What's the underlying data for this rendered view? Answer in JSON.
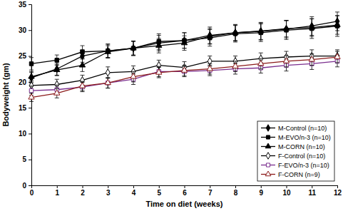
{
  "chart_data": {
    "type": "line",
    "x_label": "Time on diet (weeks)",
    "y_label": "Bodyweight (gm)",
    "x": [
      0,
      1,
      2,
      3,
      4,
      5,
      6,
      7,
      8,
      9,
      10,
      11,
      12
    ],
    "xlim": [
      0,
      12
    ],
    "xticks": [
      0,
      1,
      2,
      3,
      4,
      5,
      6,
      7,
      8,
      9,
      10,
      11,
      12
    ],
    "ylim": [
      0,
      35
    ],
    "yticks": [
      0,
      5,
      10,
      15,
      20,
      25,
      30,
      35
    ],
    "legend": "lower right",
    "series": [
      {
        "name": "M-Control (n=10)",
        "color": "#000000",
        "marker": "diamond",
        "values": [
          20.8,
          22.5,
          25.0,
          26.0,
          26.5,
          27.5,
          28.0,
          29.0,
          29.5,
          29.8,
          30.2,
          30.8,
          31.7
        ],
        "errors": [
          1.0,
          1.2,
          1.2,
          1.3,
          1.4,
          1.5,
          1.5,
          1.6,
          1.6,
          1.7,
          1.7,
          1.8,
          1.8
        ]
      },
      {
        "name": "M-EVO/n-3 (n=10)",
        "color": "#000000",
        "marker": "square",
        "values": [
          23.5,
          24.2,
          25.8,
          26.0,
          26.5,
          27.8,
          28.0,
          28.5,
          29.3,
          29.5,
          30.0,
          30.3,
          30.8
        ],
        "errors": [
          1.2,
          1.0,
          1.2,
          1.3,
          1.4,
          1.5,
          1.5,
          1.6,
          1.6,
          1.7,
          1.8,
          1.9,
          2.0
        ]
      },
      {
        "name": "M-CORN (n=10)",
        "color": "#000000",
        "marker": "triangle",
        "values": [
          21.0,
          22.3,
          23.2,
          25.8,
          26.5,
          27.0,
          27.5,
          28.8,
          29.5,
          29.8,
          30.3,
          30.5,
          31.0
        ],
        "errors": [
          1.0,
          1.1,
          1.2,
          1.2,
          1.3,
          1.4,
          1.4,
          1.5,
          1.5,
          1.6,
          1.6,
          1.7,
          1.8
        ]
      },
      {
        "name": "F-Control (n=10)",
        "color": "#000000",
        "marker": "diamond-open",
        "values": [
          19.3,
          19.5,
          20.3,
          21.8,
          22.0,
          23.2,
          22.8,
          24.0,
          24.0,
          24.5,
          24.8,
          25.0,
          25.0
        ],
        "errors": [
          1.0,
          1.0,
          1.0,
          1.1,
          1.1,
          1.0,
          1.1,
          1.0,
          1.0,
          1.1,
          1.1,
          1.2,
          1.2
        ]
      },
      {
        "name": "F-EVO/n-3 (n=10)",
        "color": "#7a2e8e",
        "marker": "square-open",
        "values": [
          18.3,
          18.5,
          19.0,
          19.8,
          20.5,
          22.0,
          22.0,
          22.2,
          22.5,
          22.7,
          23.2,
          23.5,
          24.0
        ],
        "errors": [
          0.9,
          0.9,
          0.9,
          1.0,
          1.0,
          1.0,
          1.0,
          1.0,
          1.0,
          1.0,
          1.1,
          1.1,
          1.1
        ]
      },
      {
        "name": "F-CORN (n=9)",
        "color": "#8b1a1a",
        "marker": "triangle-open",
        "values": [
          17.0,
          17.8,
          19.2,
          19.8,
          21.0,
          21.8,
          22.2,
          22.5,
          23.0,
          23.5,
          24.0,
          24.3,
          24.8
        ],
        "errors": [
          0.8,
          0.9,
          0.9,
          1.0,
          1.0,
          1.0,
          1.0,
          1.0,
          1.0,
          1.0,
          1.1,
          1.1,
          1.1
        ]
      }
    ]
  }
}
